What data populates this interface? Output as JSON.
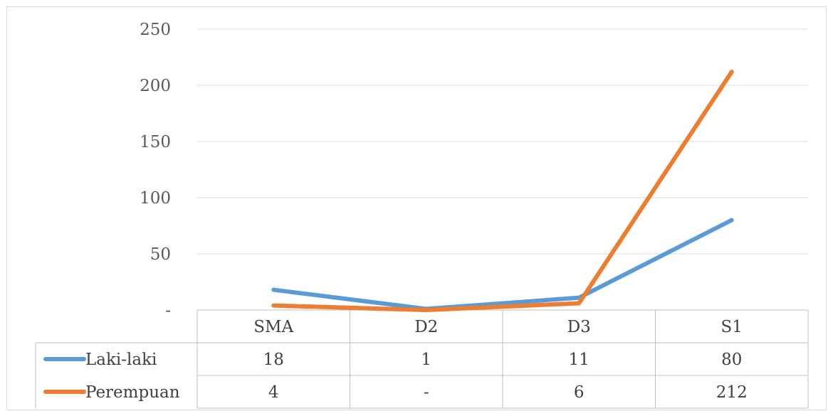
{
  "chart_data": {
    "type": "line",
    "categories": [
      "SMA",
      "D2",
      "D3",
      "S1"
    ],
    "ylim": [
      0,
      250
    ],
    "yticks": [
      0,
      50,
      100,
      150,
      200,
      250
    ],
    "ytick_labels": [
      "-",
      "50",
      "100",
      "150",
      "200",
      "250"
    ],
    "grid": true,
    "legend": "data-table",
    "series": [
      {
        "name": "Laki-laki",
        "color": "#5b9bd5",
        "values": [
          18,
          1,
          11,
          80
        ],
        "labels": [
          "18",
          "1",
          "11",
          "80"
        ]
      },
      {
        "name": "Perempuan",
        "color": "#ed7d31",
        "values": [
          4,
          0,
          6,
          212
        ],
        "labels": [
          "4",
          "-",
          "6",
          "212"
        ]
      }
    ]
  }
}
